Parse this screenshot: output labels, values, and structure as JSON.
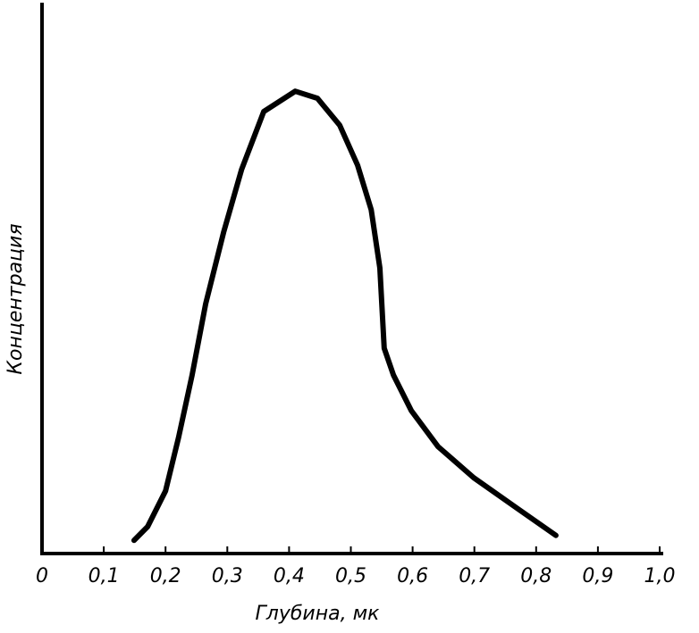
{
  "chart_data": {
    "type": "line",
    "x_label": "Глубина, мк",
    "y_label": "Концентрация",
    "xlim": [
      0,
      1.0
    ],
    "ylim": [
      0,
      100
    ],
    "xticks": [
      0,
      {
        "value": 0.1,
        "label": "0,1"
      },
      {
        "value": 0.2,
        "label": "0,2"
      },
      {
        "value": 0.3,
        "label": "0,3"
      },
      {
        "value": 0.4,
        "label": "0,4"
      },
      {
        "value": 0.5,
        "label": "0,5"
      },
      {
        "value": 0.6,
        "label": "0,6"
      },
      {
        "value": 0.7,
        "label": "0,7"
      },
      {
        "value": 0.8,
        "label": "0,8"
      },
      {
        "value": 0.9,
        "label": "0,9"
      },
      {
        "value": 1.0,
        "label": "1,0"
      }
    ],
    "series": [
      {
        "color": "#000000",
        "x": [
          0.149,
          0.171,
          0.2,
          0.221,
          0.243,
          0.265,
          0.294,
          0.323,
          0.359,
          0.41,
          0.446,
          0.482,
          0.511,
          0.533,
          0.547,
          0.554,
          0.569,
          0.598,
          0.641,
          0.699,
          0.771,
          0.832
        ],
        "values": [
          2.4,
          4.9,
          11.4,
          21.1,
          32.5,
          45.5,
          58.5,
          69.9,
          80.5,
          84.2,
          82.9,
          78.0,
          70.7,
          62.6,
          52.0,
          37.4,
          32.5,
          26.0,
          19.5,
          13.8,
          8.1,
          3.3
        ]
      }
    ]
  }
}
